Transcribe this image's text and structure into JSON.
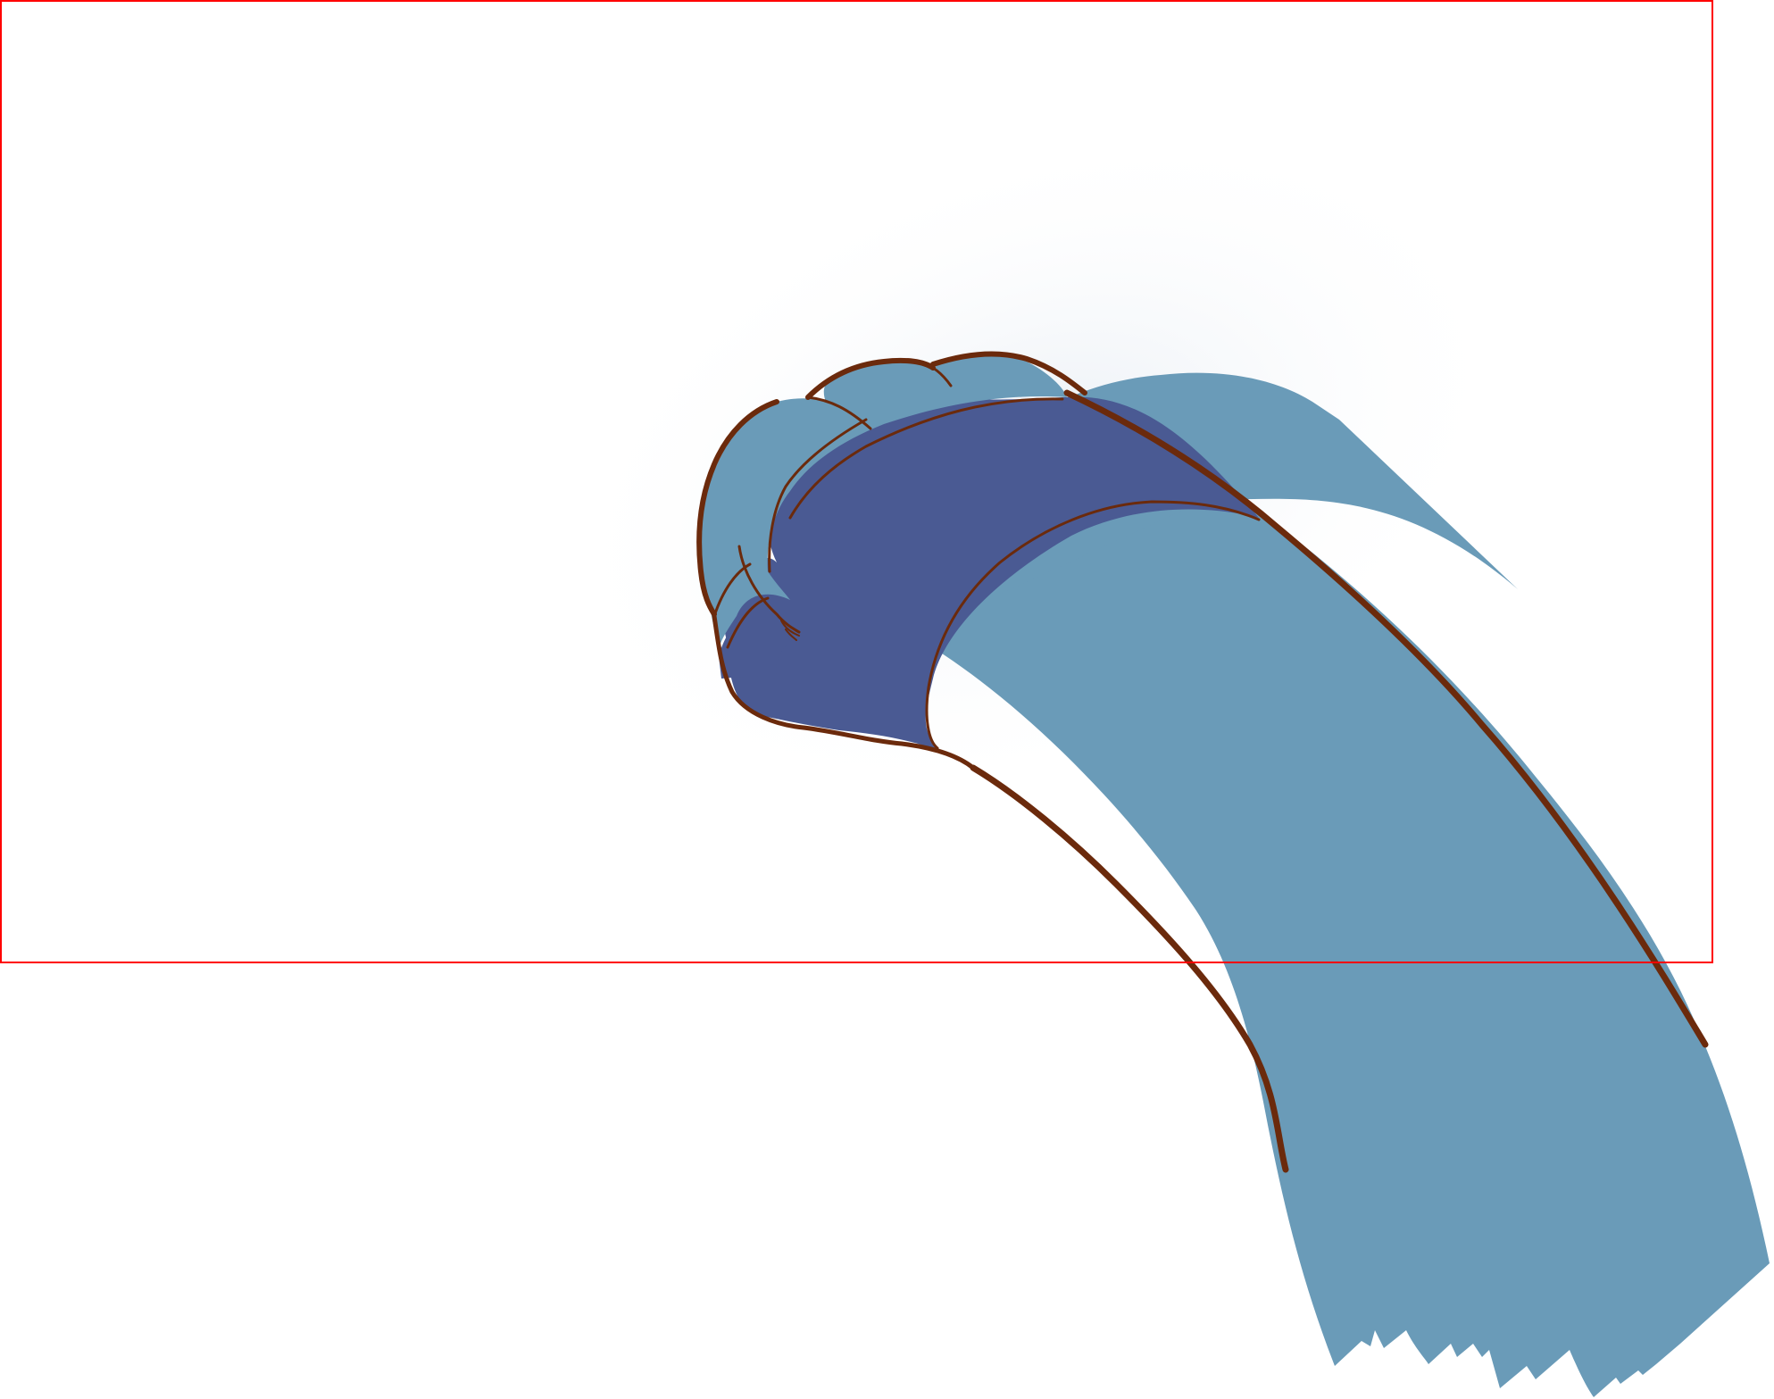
{
  "illustration": {
    "subject": "raised-fist-arm-icon",
    "colors": {
      "background": "#ffffff",
      "sleeve": "#6a9bb8",
      "hand": "#4a5a93",
      "outline": "#6b2a0c",
      "frame": "#ff0000",
      "shadow": "#e6ecf3"
    }
  }
}
